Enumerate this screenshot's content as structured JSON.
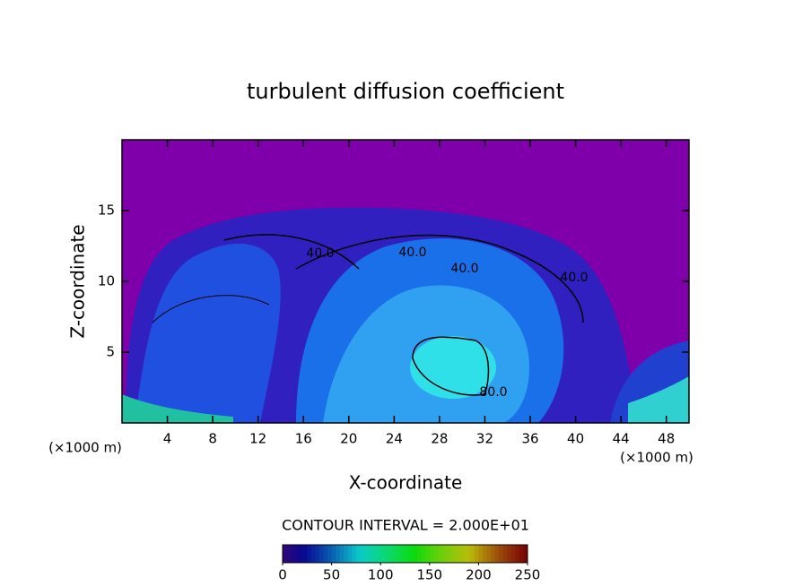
{
  "chart_data": {
    "type": "contour",
    "title": "turbulent diffusion coefficient",
    "xlabel": "X-coordinate",
    "ylabel": "Z-coordinate",
    "x_unit": "(×1000 m)",
    "y_unit": "(×1000 m)",
    "xlim": [
      0,
      50
    ],
    "ylim": [
      0,
      20
    ],
    "xticks": [
      4,
      8,
      12,
      16,
      20,
      24,
      28,
      32,
      36,
      40,
      44,
      48
    ],
    "yticks": [
      5,
      10,
      15
    ],
    "contour_labels": [
      "40.0",
      "40.0",
      "40.0",
      "40.0",
      "80.0"
    ],
    "colorbar": {
      "title": "CONTOUR INTERVAL = 2.000E+01",
      "lim": [
        0,
        250
      ],
      "ticks": [
        0,
        50,
        100,
        150,
        200,
        250
      ]
    }
  }
}
